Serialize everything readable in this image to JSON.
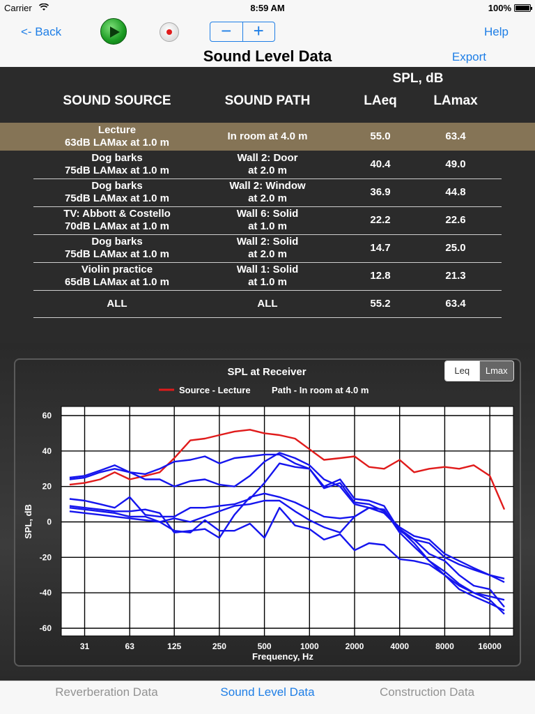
{
  "status_bar": {
    "carrier": "Carrier",
    "time": "8:59 AM",
    "battery": "100%"
  },
  "nav": {
    "back": "<- Back",
    "help": "Help",
    "export": "Export",
    "title": "Sound Level Data",
    "minus": "−",
    "plus": "+"
  },
  "table": {
    "spl_header": "SPL, dB",
    "columns": [
      "SOUND SOURCE",
      "SOUND PATH",
      "LAeq",
      "LAmax"
    ],
    "rows": [
      {
        "source1": "Lecture",
        "source2": "63dB LAMax at 1.0 m",
        "path1": "In room at 4.0 m",
        "path2": "",
        "laeq": "55.0",
        "lamax": "63.4",
        "selected": true
      },
      {
        "source1": "Dog barks",
        "source2": "75dB LAMax at 1.0 m",
        "path1": "Wall 2: Door",
        "path2": "at 2.0 m",
        "laeq": "40.4",
        "lamax": "49.0"
      },
      {
        "source1": "Dog barks",
        "source2": "75dB LAMax at 1.0 m",
        "path1": "Wall 2: Window",
        "path2": "at 2.0 m",
        "laeq": "36.9",
        "lamax": "44.8"
      },
      {
        "source1": "TV: Abbott & Costello",
        "source2": "70dB LAMax at 1.0 m",
        "path1": "Wall 6: Solid",
        "path2": "at 1.0 m",
        "laeq": "22.2",
        "lamax": "22.6"
      },
      {
        "source1": "Dog barks",
        "source2": "75dB LAMax at 1.0 m",
        "path1": "Wall 2: Solid",
        "path2": "at 2.0 m",
        "laeq": "14.7",
        "lamax": "25.0"
      },
      {
        "source1": "Violin practice",
        "source2": "65dB LAMax at 1.0 m",
        "path1": "Wall 1: Solid",
        "path2": "at 1.0 m",
        "laeq": "12.8",
        "lamax": "21.3"
      },
      {
        "source1": "ALL",
        "source2": "",
        "path1": "ALL",
        "path2": "",
        "laeq": "55.2",
        "lamax": "63.4"
      }
    ]
  },
  "chart_toggle": {
    "leq": "Leq",
    "lmax": "Lmax",
    "selected": "Leq"
  },
  "chart_data": {
    "type": "line",
    "title": "SPL at Receiver",
    "legend": {
      "source": "Source - Lecture",
      "path": "Path - In room at 4.0 m"
    },
    "xlabel": "Frequency, Hz",
    "ylabel": "SPL, dB",
    "x_scale": "log",
    "x_ticks": [
      "31",
      "63",
      "125",
      "250",
      "500",
      "1000",
      "2000",
      "4000",
      "8000",
      "16000"
    ],
    "y_ticks": [
      "60",
      "40",
      "20",
      "0",
      "-20",
      "-40",
      "-60"
    ],
    "ylim": [
      -65,
      62
    ],
    "x": [
      25,
      31.5,
      40,
      50,
      63,
      80,
      100,
      125,
      160,
      200,
      250,
      315,
      400,
      500,
      630,
      800,
      1000,
      1250,
      1600,
      2000,
      2500,
      3150,
      4000,
      5000,
      6300,
      8000,
      10000,
      12500,
      16000,
      20000
    ],
    "series": [
      {
        "color": "#e01b1b",
        "values": [
          21,
          22,
          24,
          28,
          24,
          26,
          28,
          36,
          46,
          47,
          49,
          51,
          52,
          50,
          49,
          47,
          41,
          35,
          36,
          37,
          31,
          30,
          35,
          28,
          30,
          31,
          30,
          32,
          26,
          7
        ]
      },
      {
        "color": "#1515ee",
        "values": [
          25,
          26,
          29,
          32,
          28,
          27,
          30,
          34,
          35,
          37,
          33,
          36,
          37,
          38,
          38,
          33,
          30,
          20,
          24,
          13,
          12,
          9,
          -5,
          -10,
          -12,
          -20,
          -24,
          -27,
          -30,
          -34
        ]
      },
      {
        "color": "#1515ee",
        "values": [
          24,
          25,
          28,
          30,
          28,
          24,
          24,
          20,
          23,
          24,
          21,
          20,
          26,
          34,
          39,
          36,
          32,
          24,
          20,
          10,
          8,
          5,
          -3,
          -8,
          -10,
          -18,
          -22,
          -26,
          -30,
          -32
        ]
      },
      {
        "color": "#1515ee",
        "values": [
          13,
          12,
          10,
          8,
          14,
          4,
          3,
          3,
          8,
          8,
          9,
          10,
          13,
          22,
          33,
          31,
          30,
          19,
          22,
          11,
          10,
          6,
          -4,
          -10,
          -18,
          -22,
          -30,
          -36,
          -38,
          -48
        ]
      },
      {
        "color": "#1515ee",
        "values": [
          8,
          7,
          6,
          5,
          3,
          3,
          0,
          2,
          0,
          3,
          6,
          9,
          10,
          12,
          12,
          6,
          1,
          -3,
          -6,
          3,
          8,
          5,
          -4,
          -12,
          -22,
          -30,
          -36,
          -40,
          -42,
          -44
        ]
      },
      {
        "color": "#1515ee",
        "values": [
          9,
          8,
          7,
          6,
          6,
          7,
          5,
          -6,
          -5,
          -4,
          -9,
          4,
          14,
          16,
          14,
          11,
          7,
          3,
          2,
          3,
          8,
          7,
          -6,
          -14,
          -22,
          -28,
          -35,
          -40,
          -44,
          -52
        ]
      },
      {
        "color": "#1515ee",
        "values": [
          6,
          5,
          4,
          3,
          2,
          1,
          0,
          -5,
          -6,
          1,
          -5,
          -5,
          -1,
          -9,
          8,
          -2,
          -4,
          -10,
          -7,
          -16,
          -12,
          -13,
          -21,
          -22,
          -24,
          -30,
          -38,
          -42,
          -46,
          -50
        ]
      }
    ]
  }
}
